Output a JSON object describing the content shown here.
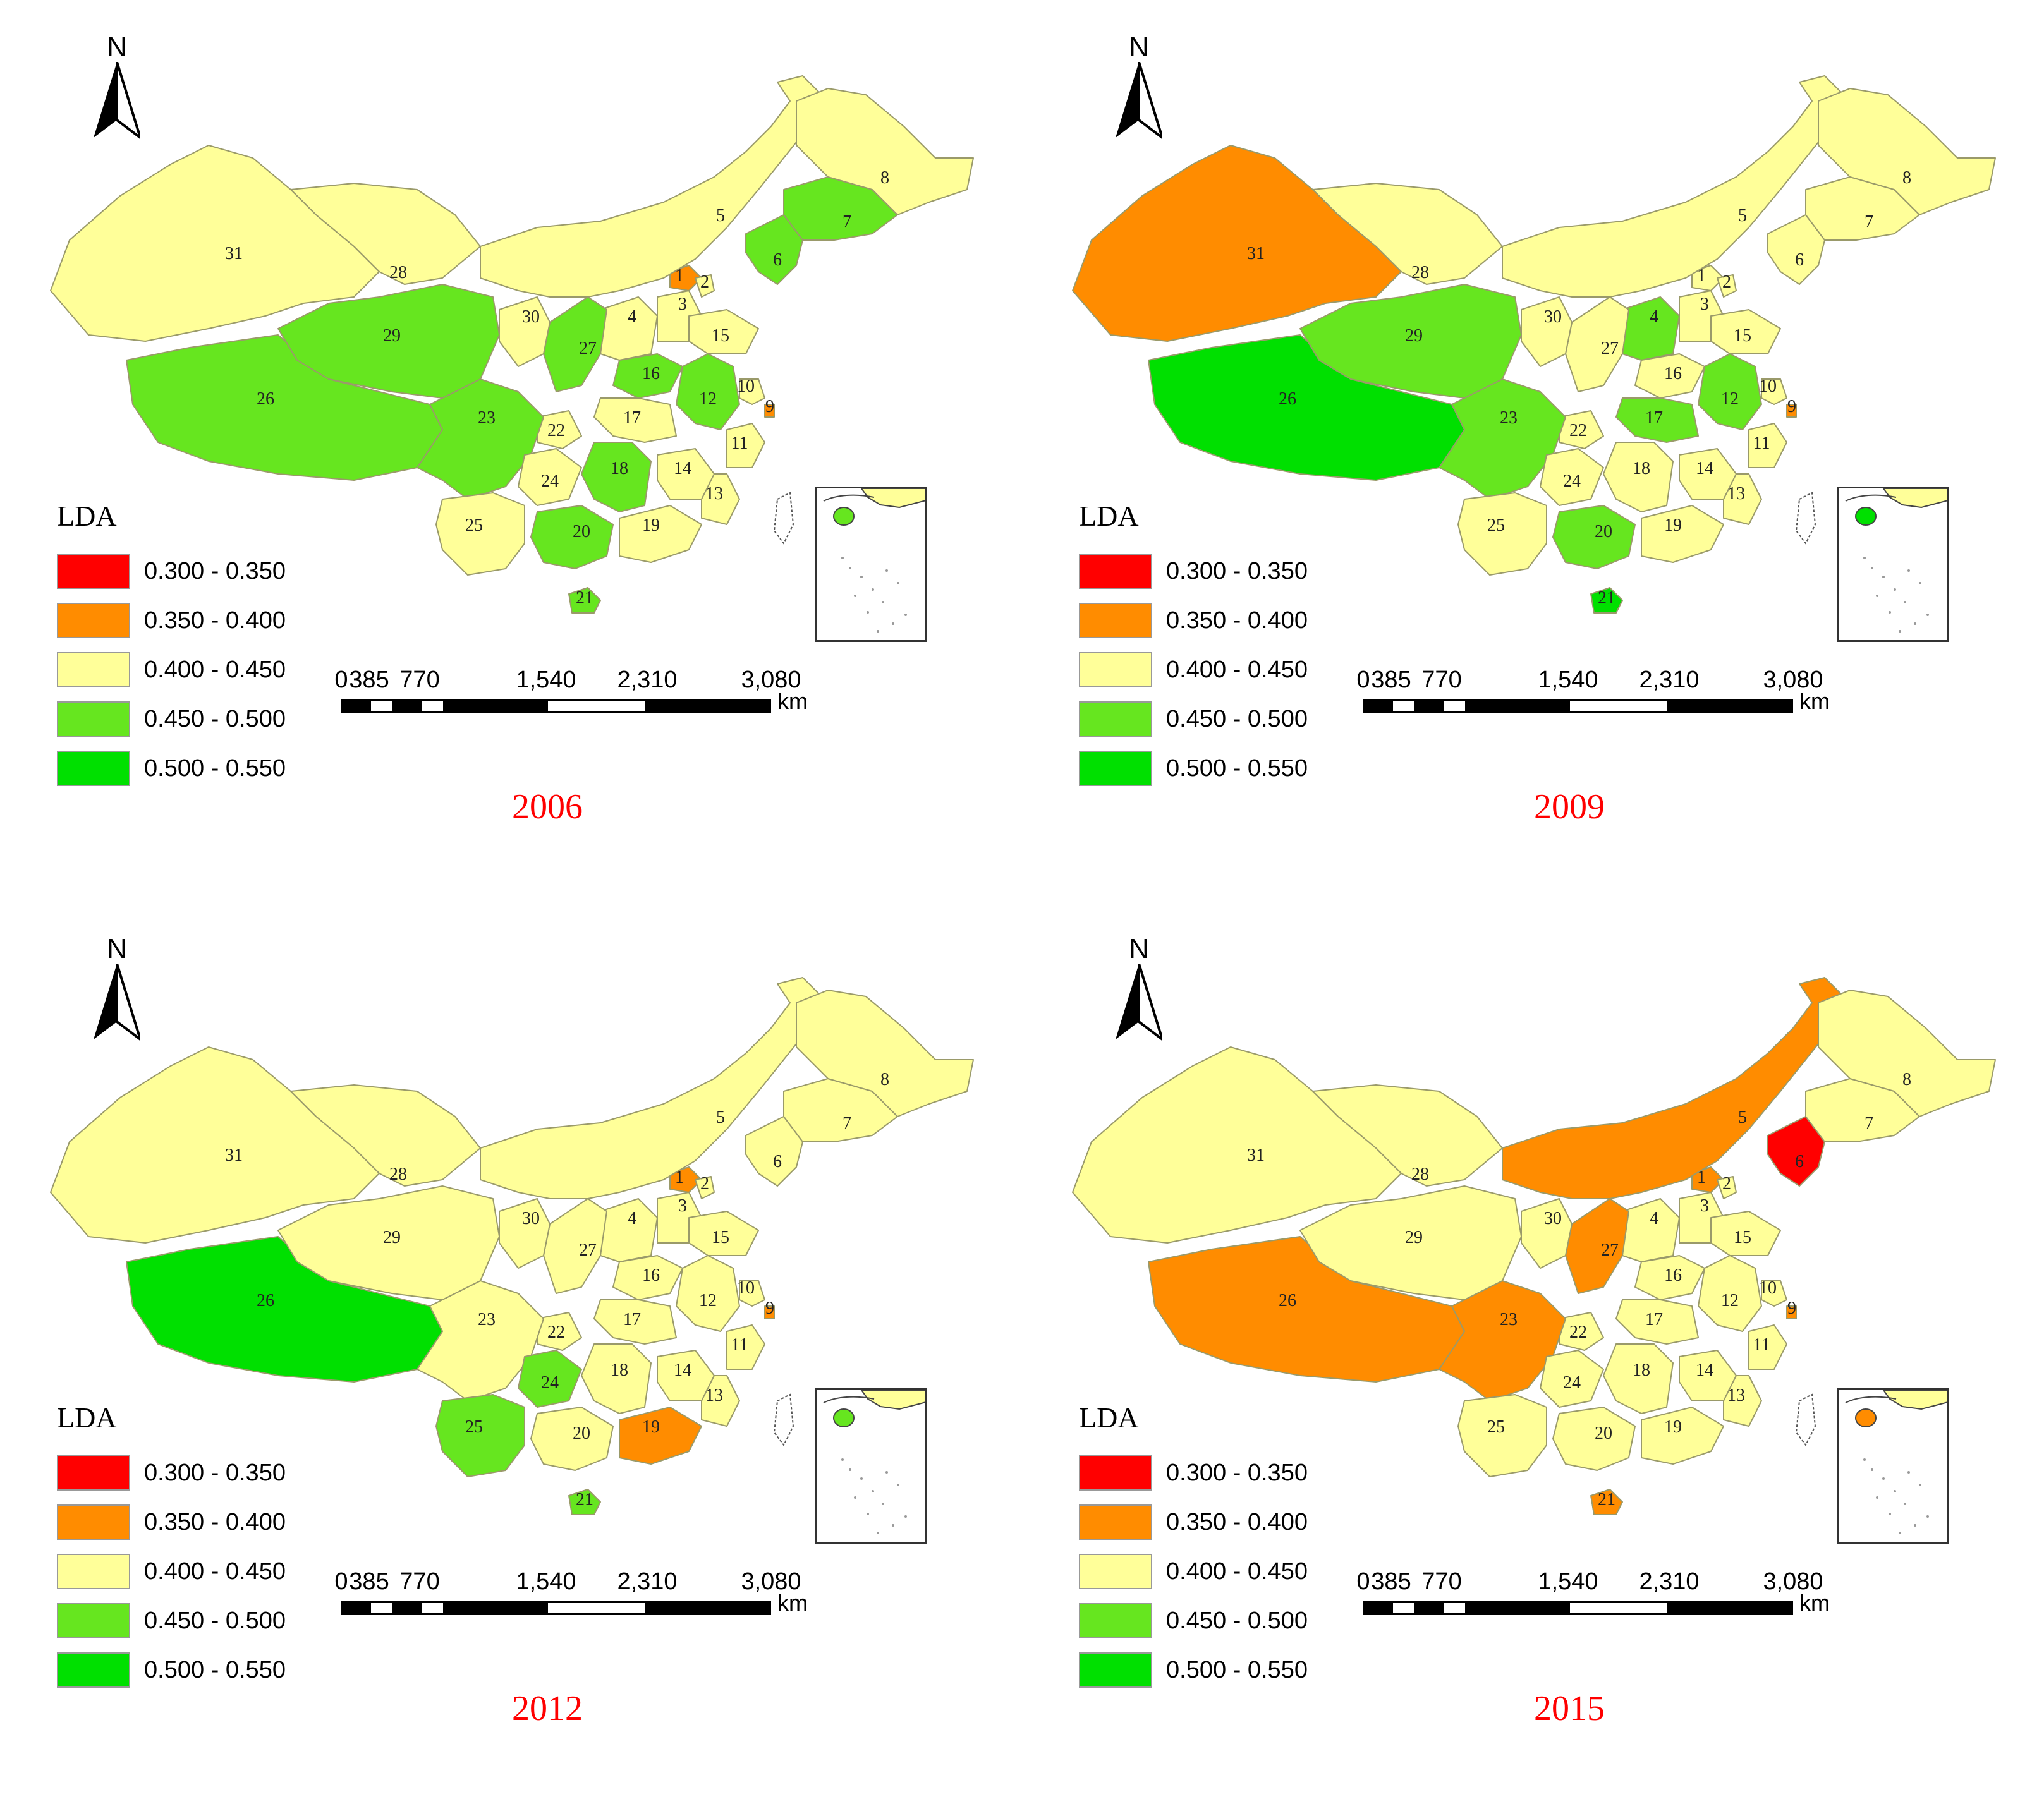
{
  "legend_title": "LDA",
  "unit": "km",
  "scale_ticks": [
    "0",
    "385",
    "770",
    "1,540",
    "2,310",
    "3,080"
  ],
  "classes": [
    {
      "label": "0.300 - 0.350",
      "color": "#ff0000"
    },
    {
      "label": "0.350 - 0.400",
      "color": "#ff8c00"
    },
    {
      "label": "0.400 - 0.450",
      "color": "#ffff99"
    },
    {
      "label": "0.450 - 0.500",
      "color": "#66e61f"
    },
    {
      "label": "0.500 - 0.550",
      "color": "#00e000"
    }
  ],
  "north_label": "N",
  "panels": [
    {
      "year": "2006",
      "region_class": {
        "31": 2,
        "28": 2,
        "29": 3,
        "26": 3,
        "23": 3,
        "30": 2,
        "27": 3,
        "4": 2,
        "3": 2,
        "1": 1,
        "2": 2,
        "5": 2,
        "6": 3,
        "7": 3,
        "8": 2,
        "15": 2,
        "16": 3,
        "12": 3,
        "10": 2,
        "9": 1,
        "11": 2,
        "17": 2,
        "22": 2,
        "24": 2,
        "18": 3,
        "14": 2,
        "13": 2,
        "25": 2,
        "20": 3,
        "19": 2,
        "21": 3
      }
    },
    {
      "year": "2009",
      "region_class": {
        "31": 1,
        "28": 2,
        "29": 3,
        "26": 4,
        "23": 3,
        "30": 2,
        "27": 2,
        "4": 3,
        "3": 2,
        "1": 2,
        "2": 2,
        "5": 2,
        "6": 2,
        "7": 2,
        "8": 2,
        "15": 2,
        "16": 2,
        "12": 3,
        "10": 2,
        "9": 1,
        "11": 2,
        "17": 3,
        "22": 2,
        "24": 2,
        "18": 2,
        "14": 2,
        "13": 2,
        "25": 2,
        "20": 3,
        "19": 2,
        "21": 4
      }
    },
    {
      "year": "2012",
      "region_class": {
        "31": 2,
        "28": 2,
        "29": 2,
        "26": 4,
        "23": 2,
        "30": 2,
        "27": 2,
        "4": 2,
        "3": 2,
        "1": 1,
        "2": 2,
        "5": 2,
        "6": 2,
        "7": 2,
        "8": 2,
        "15": 2,
        "16": 2,
        "12": 2,
        "10": 2,
        "9": 1,
        "11": 2,
        "17": 2,
        "22": 2,
        "24": 3,
        "18": 2,
        "14": 2,
        "13": 2,
        "25": 3,
        "20": 2,
        "19": 1,
        "21": 3
      }
    },
    {
      "year": "2015",
      "region_class": {
        "31": 2,
        "28": 2,
        "29": 2,
        "26": 1,
        "23": 1,
        "30": 2,
        "27": 1,
        "4": 2,
        "3": 2,
        "1": 1,
        "2": 2,
        "5": 1,
        "6": 0,
        "7": 2,
        "8": 2,
        "15": 2,
        "16": 2,
        "12": 2,
        "10": 2,
        "9": 1,
        "11": 2,
        "17": 2,
        "22": 2,
        "24": 2,
        "18": 2,
        "14": 2,
        "13": 2,
        "25": 2,
        "20": 2,
        "19": 2,
        "21": 1
      }
    }
  ]
}
